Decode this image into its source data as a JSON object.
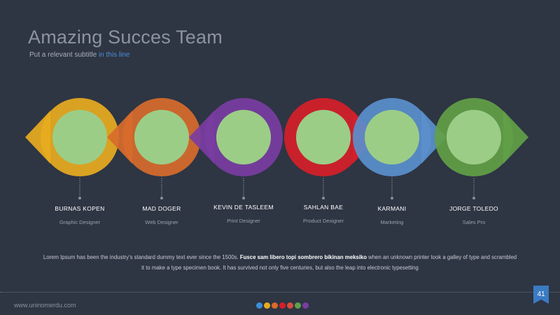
{
  "slide": {
    "title": "Amazing Succes Team",
    "subtitle_main": "Put a relevant subtitle ",
    "subtitle_highlight": "in this line",
    "highlight_color": "#4a8fd8",
    "background_color": "#2e3543"
  },
  "team": [
    {
      "name": "BURNAS KOPEN",
      "role": "Graphic Designer",
      "color": "#e8ab1f"
    },
    {
      "name": "MAD DOGER",
      "role": "Web Designer",
      "color": "#d86b2d"
    },
    {
      "name": "KEVIN DE TASLEEM",
      "role": "Print Designer",
      "color": "#7a3da2"
    },
    {
      "name": "SAHLAN BAE",
      "role": "Product Designer",
      "color": "#d61f29"
    },
    {
      "name": "KARMANI",
      "role": "Marketing",
      "color": "#5a8fcd"
    },
    {
      "name": "JORGE TOLEDO",
      "role": "Sales Pro",
      "color": "#62a046"
    }
  ],
  "inner_circle_color": "#9ccd87",
  "body": {
    "part1": "Lorem Ipsum has been the industry's standard dummy text ever since the 1500s. ",
    "bold": "Fusce sam libero topi sombrero bikinan meksiko",
    "part2": " when an unknown printer took a galley of type and scrambled it to make a type specimen book. It has survived not only five centuries, but also the leap into electronic typesetting"
  },
  "footer": {
    "url": "www.uninomerdu.com",
    "page_number": "41",
    "dots": [
      "#3a8fd6",
      "#e8ab1f",
      "#d86b2d",
      "#d61f29",
      "#d84d3a",
      "#62a046",
      "#7a3da2"
    ]
  }
}
